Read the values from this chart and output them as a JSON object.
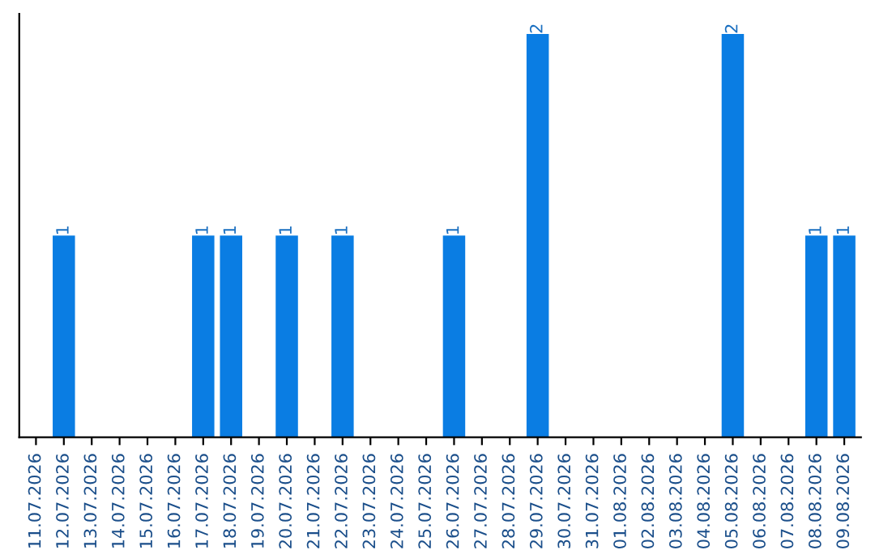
{
  "chart_data": {
    "type": "bar",
    "categories": [
      "11.07.2026",
      "12.07.2026",
      "13.07.2026",
      "14.07.2026",
      "15.07.2026",
      "16.07.2026",
      "17.07.2026",
      "18.07.2026",
      "19.07.2026",
      "20.07.2026",
      "21.07.2026",
      "22.07.2026",
      "23.07.2026",
      "24.07.2026",
      "25.07.2026",
      "26.07.2026",
      "27.07.2026",
      "28.07.2026",
      "29.07.2026",
      "30.07.2026",
      "31.07.2026",
      "01.08.2026",
      "02.08.2026",
      "03.08.2026",
      "04.08.2026",
      "05.08.2026",
      "06.08.2026",
      "07.08.2026",
      "08.08.2026",
      "09.08.2026"
    ],
    "values": [
      0,
      1,
      0,
      0,
      0,
      0,
      1,
      1,
      0,
      1,
      0,
      1,
      0,
      0,
      0,
      1,
      0,
      0,
      2,
      0,
      0,
      0,
      0,
      0,
      0,
      2,
      0,
      0,
      1,
      1
    ],
    "value_labels": [
      null,
      "1",
      null,
      null,
      null,
      null,
      "1",
      "1",
      null,
      "1",
      null,
      "1",
      null,
      null,
      null,
      "1",
      null,
      null,
      "2",
      null,
      null,
      null,
      null,
      null,
      null,
      "2",
      null,
      null,
      "1",
      "1"
    ],
    "color": "#0a7de3",
    "tick_labels": "x",
    "grid": false,
    "legend": false
  }
}
